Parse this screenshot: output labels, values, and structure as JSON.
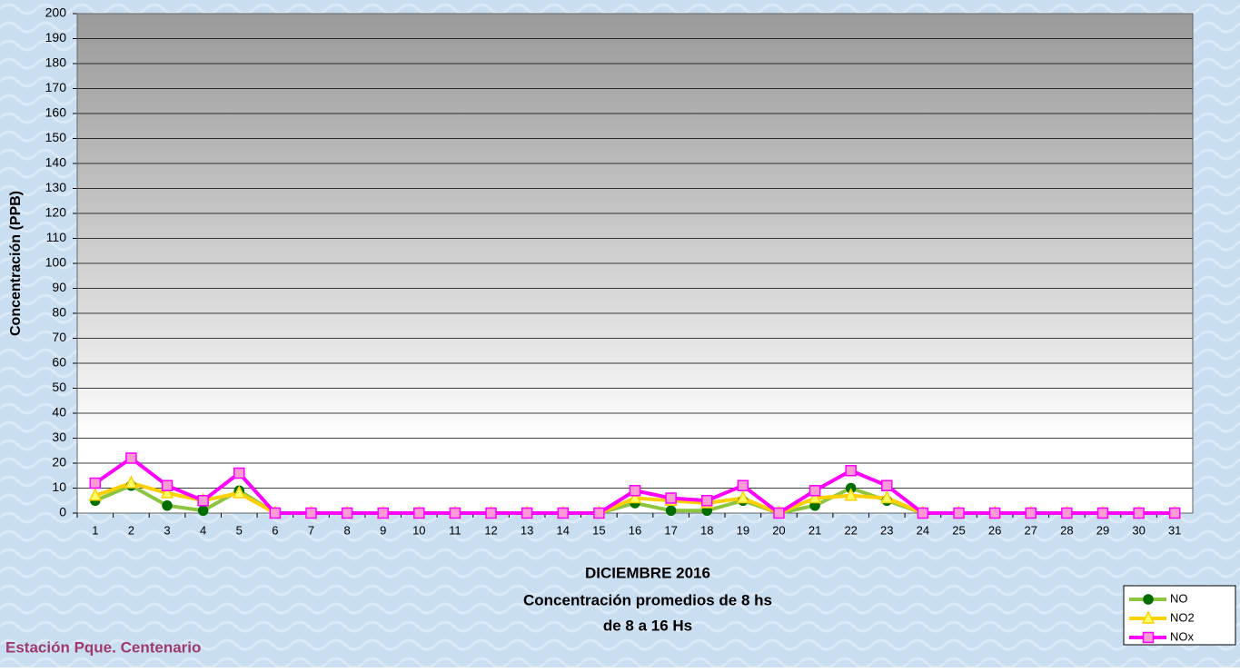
{
  "chart_data": {
    "type": "line",
    "title_lines": [
      "DICIEMBRE 2016",
      "Concentración promedios de 8 hs",
      "de 8 a 16 Hs"
    ],
    "annotation": "Estación Pque. Centenario",
    "y_label": "Concentración (PPB)",
    "categories": [
      "1",
      "2",
      "3",
      "4",
      "5",
      "6",
      "7",
      "8",
      "9",
      "10",
      "11",
      "12",
      "13",
      "14",
      "15",
      "16",
      "17",
      "18",
      "19",
      "20",
      "21",
      "22",
      "23",
      "24",
      "25",
      "26",
      "27",
      "28",
      "29",
      "30",
      "31"
    ],
    "series": [
      {
        "name": "NO",
        "color": "#8cc63f",
        "marker": "circle",
        "marker_color": "#006d00",
        "values": [
          5,
          11,
          3,
          1,
          9,
          0,
          0,
          0,
          0,
          0,
          0,
          0,
          0,
          0,
          0,
          4,
          1,
          1,
          5,
          0,
          3,
          10,
          5,
          0,
          0,
          0,
          0,
          0,
          0,
          0,
          0
        ]
      },
      {
        "name": "NO2",
        "color": "#ffd000",
        "marker": "triangle",
        "marker_color": "#ffff66",
        "values": [
          7,
          12,
          8,
          5,
          8,
          0,
          0,
          0,
          0,
          0,
          0,
          0,
          0,
          0,
          0,
          6,
          5,
          4,
          6,
          0,
          6,
          7,
          6,
          0,
          0,
          0,
          0,
          0,
          0,
          0,
          0
        ]
      },
      {
        "name": "NOx",
        "color": "#ff00ff",
        "marker": "square",
        "marker_color": "#ff9ad5",
        "values": [
          12,
          22,
          11,
          5,
          16,
          0,
          0,
          0,
          0,
          0,
          0,
          0,
          0,
          0,
          0,
          9,
          6,
          5,
          11,
          0,
          9,
          17,
          11,
          0,
          0,
          0,
          0,
          0,
          0,
          0,
          0
        ]
      }
    ],
    "ylim": [
      0,
      200
    ],
    "yticks": [
      0,
      10,
      20,
      30,
      40,
      50,
      60,
      70,
      80,
      90,
      100,
      110,
      120,
      130,
      140,
      150,
      160,
      170,
      180,
      190,
      200
    ],
    "grid": true
  }
}
